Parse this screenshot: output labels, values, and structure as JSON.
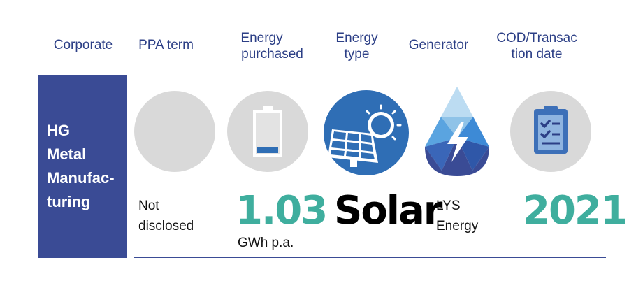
{
  "headers": {
    "corporate": "Corporate",
    "ppa_term": "PPA term",
    "energy_purchased_1": "Energy",
    "energy_purchased_2": "purchased",
    "energy_type_1": "Energy",
    "energy_type_2": "type",
    "generator": "Generator",
    "cod_1": "COD/Transac",
    "cod_2": "tion date"
  },
  "corporate_name": [
    "HG",
    "Metal",
    "Manufac-",
    "turing"
  ],
  "ppa_term": {
    "line1": "Not",
    "line2": "disclosed"
  },
  "energy_purchased": {
    "value": "1.03",
    "unit": "GWh p.a.",
    "battery_level": 0.15
  },
  "energy_type": "Solar",
  "generator": {
    "line1": "LYS",
    "line2": "Energy"
  },
  "cod_date": "2021",
  "colors": {
    "navy": "#3a4b95",
    "teal": "#3fae9e",
    "circle_gray": "#d9d9d9",
    "solar_blue": "#2f6eb5",
    "drop_light": "#8fc3e8",
    "drop_mid": "#3d8ad6"
  },
  "icons": [
    "battery-icon",
    "solar-panel-icon",
    "water-drop-lightning-icon",
    "clipboard-checklist-icon"
  ]
}
